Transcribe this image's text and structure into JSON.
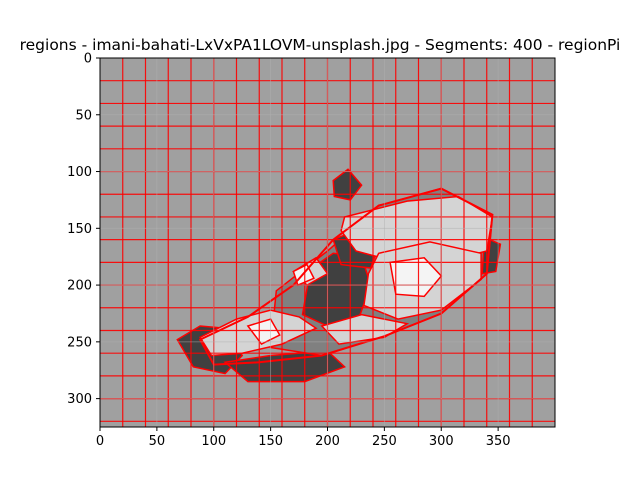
{
  "chart_data": {
    "type": "heatmap",
    "title": "regions - imani-bahati-LxVxPA1LOVM-unsplash.jpg - Segments: 400 - regionPi",
    "xlabel": "",
    "ylabel": "",
    "image_size": [
      400,
      325
    ],
    "xlim": [
      0,
      400
    ],
    "ylim": [
      325,
      0
    ],
    "xticks": [
      0,
      50,
      100,
      150,
      200,
      250,
      300,
      350
    ],
    "yticks": [
      0,
      50,
      100,
      150,
      200,
      250,
      300
    ],
    "grid": true,
    "segments": 400,
    "colors": {
      "background_gray": "#a0a0a0",
      "boundary": "#ff0000",
      "light": "#d4d4d4",
      "white": "#f4f4f4",
      "dark": "#404040",
      "mid_dark": "#808080"
    }
  }
}
